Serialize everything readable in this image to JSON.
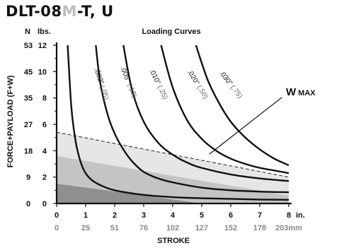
{
  "title": {
    "main_a": "DLT-08",
    "main_hl": "M",
    "main_b": "-T, U"
  },
  "chart_data": {
    "type": "line",
    "title": "Loading Curves",
    "xlabel": "STROKE",
    "ylabel": "FORCE+PAYLOAD (F+W)",
    "y_unit_left": "N",
    "y_unit_right": "lbs.",
    "x_unit_in": "in.",
    "x_unit_mm": "203mm",
    "xlim": [
      0,
      8
    ],
    "ylim": [
      0,
      12
    ],
    "x_ticks_in": [
      "0",
      "1",
      "2",
      "3",
      "4",
      "5",
      "6",
      "7",
      "8"
    ],
    "x_ticks_mm": [
      "0",
      "25",
      "51",
      "76",
      "102",
      "127",
      "152",
      "178",
      "203mm"
    ],
    "y_ticks_lbs": [
      "0",
      "2",
      "4",
      "6",
      "8",
      "10",
      "12"
    ],
    "y_ticks_n": [
      "0",
      "9",
      "18",
      "27",
      "35",
      "45",
      "53"
    ],
    "series": [
      {
        "name": ".002\" (.05)",
        "label_a": ".002\"",
        "label_b": "(.05)",
        "x": [
          0.38,
          0.5,
          0.6,
          0.7,
          0.85,
          1,
          1.2,
          1.5,
          2,
          3,
          4,
          5,
          6,
          7,
          8
        ],
        "y": [
          12,
          7.5,
          5.5,
          4.2,
          3,
          2.3,
          1.8,
          1.4,
          1.0,
          0.65,
          0.48,
          0.4,
          0.35,
          0.3,
          0.28
        ]
      },
      {
        "name": ".005\" (.13)",
        "label_a": ".005\"",
        "label_b": "(.13)",
        "x": [
          1.35,
          1.5,
          1.75,
          2,
          2.3,
          2.6,
          3,
          3.5,
          4,
          5,
          6,
          7,
          8
        ],
        "y": [
          12,
          9.2,
          6.8,
          5.3,
          4.1,
          3.2,
          2.4,
          1.9,
          1.6,
          1.2,
          1.0,
          0.9,
          0.85
        ]
      },
      {
        "name": ".010\" (.25)",
        "label_a": ".010\"",
        "label_b": "(.25)",
        "x": [
          2.3,
          2.6,
          3,
          3.5,
          4,
          4.5,
          5,
          6,
          7,
          8
        ],
        "y": [
          12,
          8.6,
          6.2,
          4.6,
          3.7,
          3.1,
          2.7,
          2.2,
          1.9,
          1.7
        ]
      },
      {
        "name": ".020\" (.50)",
        "label_a": ".020\"",
        "label_b": "(.50)",
        "x": [
          3.6,
          4,
          4.5,
          5,
          5.5,
          6,
          6.5,
          7,
          7.5,
          8
        ],
        "y": [
          12,
          8.8,
          6.3,
          4.9,
          4.0,
          3.4,
          3.0,
          2.7,
          2.5,
          2.3
        ]
      },
      {
        "name": ".030\" (.75)",
        "label_a": ".030\"",
        "label_b": "(.75)",
        "x": [
          4.8,
          5.2,
          5.6,
          6,
          6.5,
          7,
          7.5,
          8
        ],
        "y": [
          12,
          9.4,
          7.6,
          6.2,
          5.0,
          4.1,
          3.4,
          2.9
        ]
      }
    ],
    "shaded_regions": [
      {
        "boundary_x": [
          0,
          8
        ],
        "boundary_y": [
          5.4,
          2.0
        ],
        "color": "#e6e6e6"
      },
      {
        "boundary_x": [
          0,
          8
        ],
        "boundary_y": [
          3.6,
          0.6
        ],
        "color": "#c4c4c4"
      },
      {
        "boundary_x": [
          0,
          5
        ],
        "boundary_y": [
          1.5,
          0
        ],
        "color": "#8f8f8f"
      }
    ],
    "annotation": {
      "text_main": "W",
      "text_sub": "MAX",
      "points_to_x": 5.2,
      "points_to_y": 3.1
    },
    "grid": false
  }
}
